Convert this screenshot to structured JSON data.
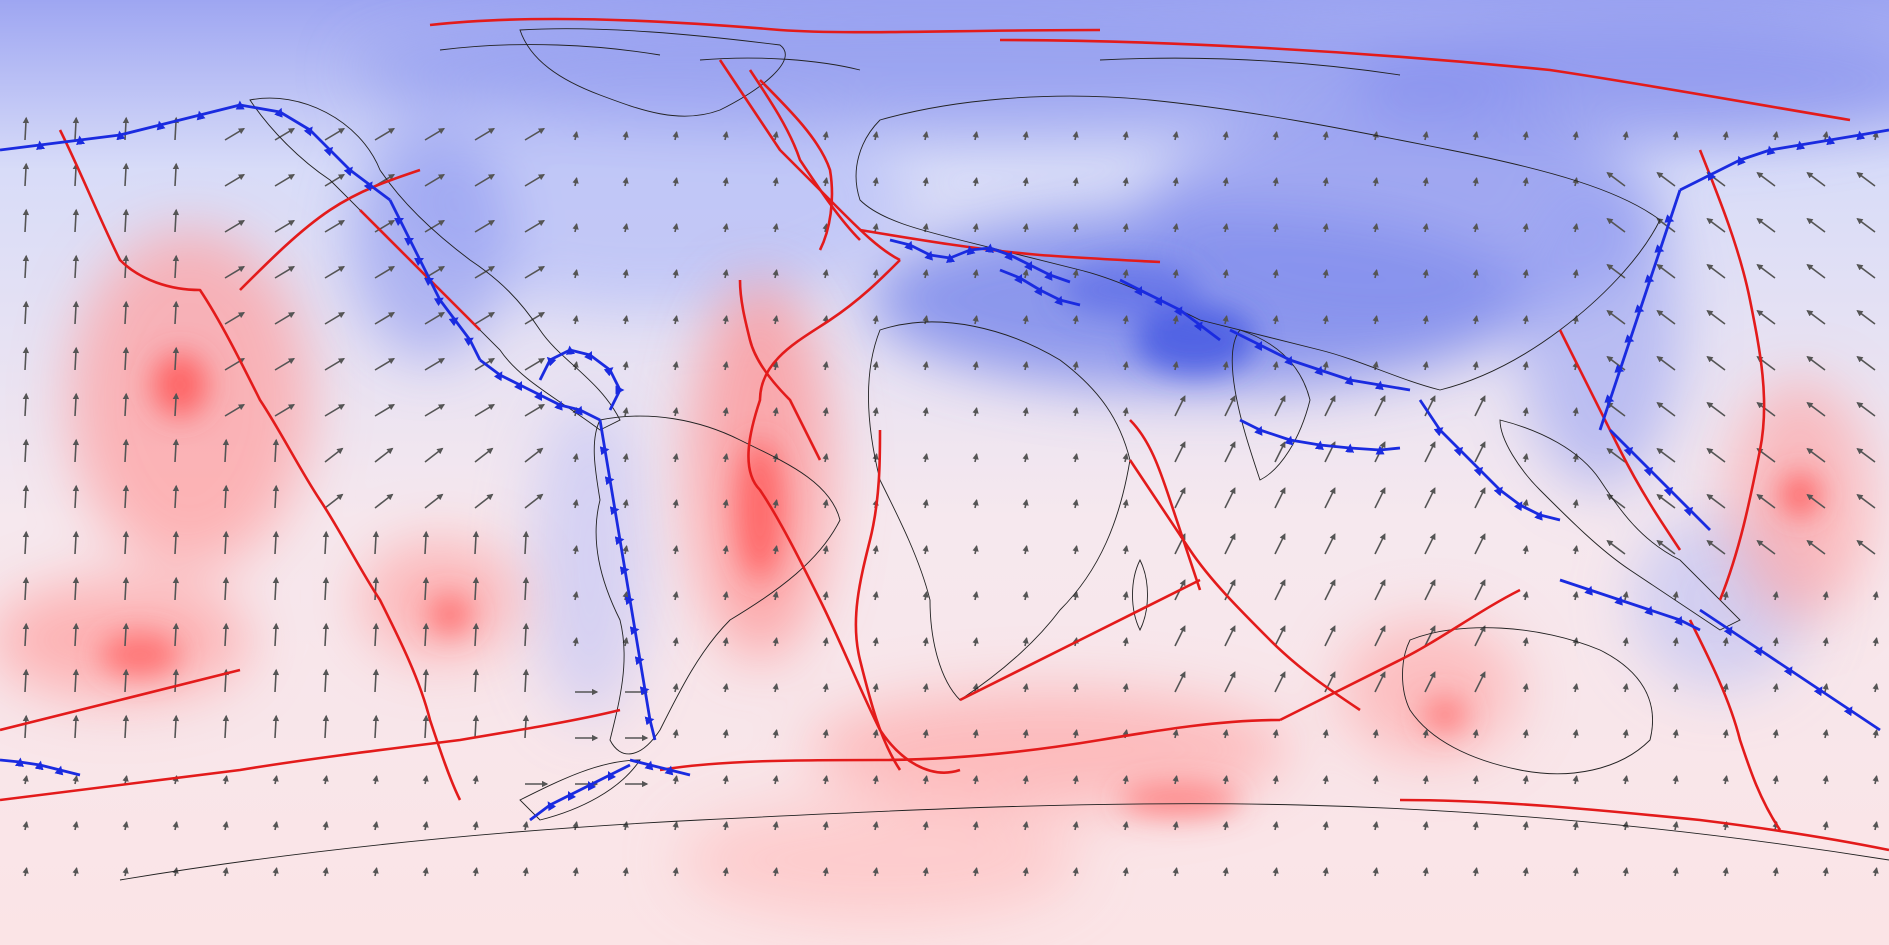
{
  "map": {
    "projection": "equirectangular",
    "background_gradient": [
      "#9ea6f2",
      "#d8dcf8",
      "#f6e6ee",
      "#fbe4e6"
    ],
    "colors": {
      "uplift_high": "#ff5a5a",
      "uplift_mid": "#ffb3b3",
      "uplift_low": "#ffe4e4",
      "subsidence_high": "#5a6de8",
      "subsidence_mid": "#a5aef5",
      "subsidence_low": "#dfe2fb",
      "ridge_boundary": "#e31b1b",
      "subduction_boundary": "#1a2be0",
      "coastline": "#222222",
      "velocity_arrow": "#555555"
    },
    "legend": null
  }
}
